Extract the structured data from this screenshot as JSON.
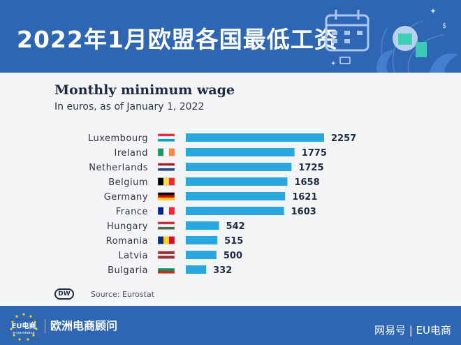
{
  "header": {
    "title": "2022年1月欧盟各国最低工资"
  },
  "chart_data": {
    "type": "bar",
    "orientation": "horizontal",
    "title": "Monthly minimum wage",
    "subtitle": "In euros, as of January 1, 2022",
    "categories": [
      "Luxembourg",
      "Ireland",
      "Netherlands",
      "Belgium",
      "Germany",
      "France",
      "Hungary",
      "Romania",
      "Latvia",
      "Bulgaria"
    ],
    "values": [
      2257,
      1775,
      1725,
      1658,
      1621,
      1603,
      542,
      515,
      500,
      332
    ],
    "value_labels": [
      "2257",
      "1775",
      "1725",
      "1658",
      "1621",
      "1603",
      "542",
      "515",
      "500",
      "332"
    ],
    "flags": [
      {
        "country": "Luxembourg",
        "colors": [
          "#ed2939",
          "#ffffff",
          "#00a1de"
        ],
        "direction": "horizontal"
      },
      {
        "country": "Ireland",
        "colors": [
          "#169b62",
          "#ffffff",
          "#ff883e"
        ],
        "direction": "vertical"
      },
      {
        "country": "Netherlands",
        "colors": [
          "#ae1c28",
          "#ffffff",
          "#21468b"
        ],
        "direction": "horizontal"
      },
      {
        "country": "Belgium",
        "colors": [
          "#000000",
          "#fae042",
          "#ed2939"
        ],
        "direction": "vertical"
      },
      {
        "country": "Germany",
        "colors": [
          "#000000",
          "#dd0000",
          "#ffce00"
        ],
        "direction": "horizontal"
      },
      {
        "country": "France",
        "colors": [
          "#002395",
          "#ffffff",
          "#ed2939"
        ],
        "direction": "vertical"
      },
      {
        "country": "Hungary",
        "colors": [
          "#cd2a3e",
          "#ffffff",
          "#436f4d"
        ],
        "direction": "horizontal"
      },
      {
        "country": "Romania",
        "colors": [
          "#002b7f",
          "#fcd116",
          "#ce1126"
        ],
        "direction": "vertical"
      },
      {
        "country": "Latvia",
        "colors": [
          "#9e3039",
          "#ffffff",
          "#9e3039"
        ],
        "direction": "latvia"
      },
      {
        "country": "Bulgaria",
        "colors": [
          "#ffffff",
          "#00966e",
          "#d62612"
        ],
        "direction": "horizontal"
      }
    ],
    "bar_color": "#29a8e0",
    "xlim": [
      0,
      2257
    ],
    "grid": false,
    "legend": "none"
  },
  "footer": {
    "logo_text": "DW",
    "source": "Source: Eurostat"
  },
  "bottom_bar": {
    "brand_logo_text": "EU电商",
    "brand_logo_sub": "e-commerce",
    "brand_name": "欧洲电商顾问",
    "watermark": "网易号 | EU电商"
  },
  "colors": {
    "header_bg": "#2e66b3",
    "card_bg": "#f4f5f6",
    "title_text": "#1f2a44",
    "bar": "#29a8e0"
  }
}
